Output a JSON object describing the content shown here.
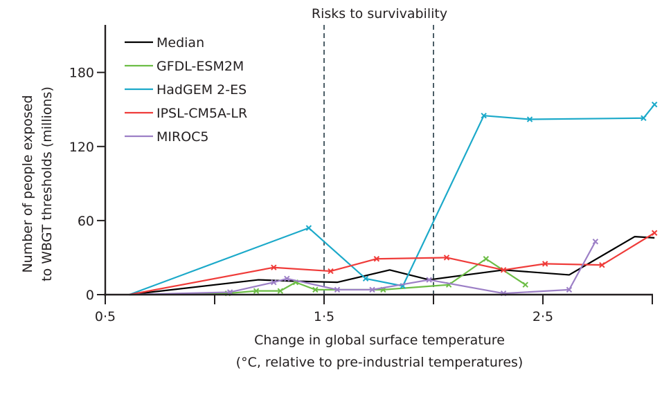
{
  "chart_data": {
    "type": "line",
    "title": "",
    "annotation": "Risks to survivability",
    "annotation_lines_x": [
      1.5,
      2.0
    ],
    "xlabel_line1": "Change in global surface temperature",
    "xlabel_line2": "(°C, relative to pre-industrial temperatures)",
    "ylabel_line1": "Number of people exposed",
    "ylabel_line2": "to WBGT thresholds (millions)",
    "xlim": [
      0.5,
      3.0
    ],
    "ylim": [
      0,
      210
    ],
    "x_ticks": [
      0.5,
      1.0,
      1.5,
      2.0,
      2.5,
      3.0
    ],
    "x_tick_labels": [
      {
        "value": 0.5,
        "label": "0·5"
      },
      {
        "value": 1.5,
        "label": "1·5"
      },
      {
        "value": 2.5,
        "label": "2·5"
      }
    ],
    "y_ticks": [
      0,
      60,
      120,
      180
    ],
    "y_tick_labels": [
      "0",
      "60",
      "120",
      "180"
    ],
    "grid": false,
    "legend_position": "top-left",
    "series": [
      {
        "name": "Median",
        "color": "#000000",
        "markers": false,
        "x": [
          0.61,
          1.2,
          1.35,
          1.56,
          1.8,
          1.98,
          2.32,
          2.62,
          2.92,
          3.01
        ],
        "y": [
          0,
          12,
          11,
          10,
          20,
          12,
          20,
          16,
          47,
          46
        ]
      },
      {
        "name": "GFDL-ESM2M",
        "color": "#6cbd45",
        "markers": true,
        "x": [
          0.61,
          1.06,
          1.19,
          1.3,
          1.37,
          1.46,
          1.77,
          2.07,
          2.24,
          2.42
        ],
        "y": [
          0,
          1,
          3,
          3,
          10,
          4,
          4,
          8,
          29,
          8
        ]
      },
      {
        "name": "HadGEM 2-ES",
        "color": "#1ba9c9",
        "markers": true,
        "x": [
          0.61,
          1.43,
          1.69,
          1.86,
          2.23,
          2.44,
          2.96,
          3.01
        ],
        "y": [
          0,
          54,
          13,
          7,
          145,
          142,
          143,
          154
        ]
      },
      {
        "name": "IPSL-CM5A-LR",
        "color": "#ef3b39",
        "markers": true,
        "x": [
          0.61,
          1.27,
          1.53,
          1.74,
          2.06,
          2.32,
          2.51,
          2.77,
          3.01
        ],
        "y": [
          0,
          22,
          19,
          29,
          30,
          20,
          25,
          24,
          50
        ]
      },
      {
        "name": "MIROC5",
        "color": "#9c7fc6",
        "markers": true,
        "x": [
          0.61,
          1.07,
          1.27,
          1.33,
          1.56,
          1.72,
          1.98,
          2.32,
          2.62,
          2.74
        ],
        "y": [
          0,
          2,
          10,
          13,
          4,
          4,
          12,
          1,
          4,
          43
        ]
      }
    ]
  }
}
